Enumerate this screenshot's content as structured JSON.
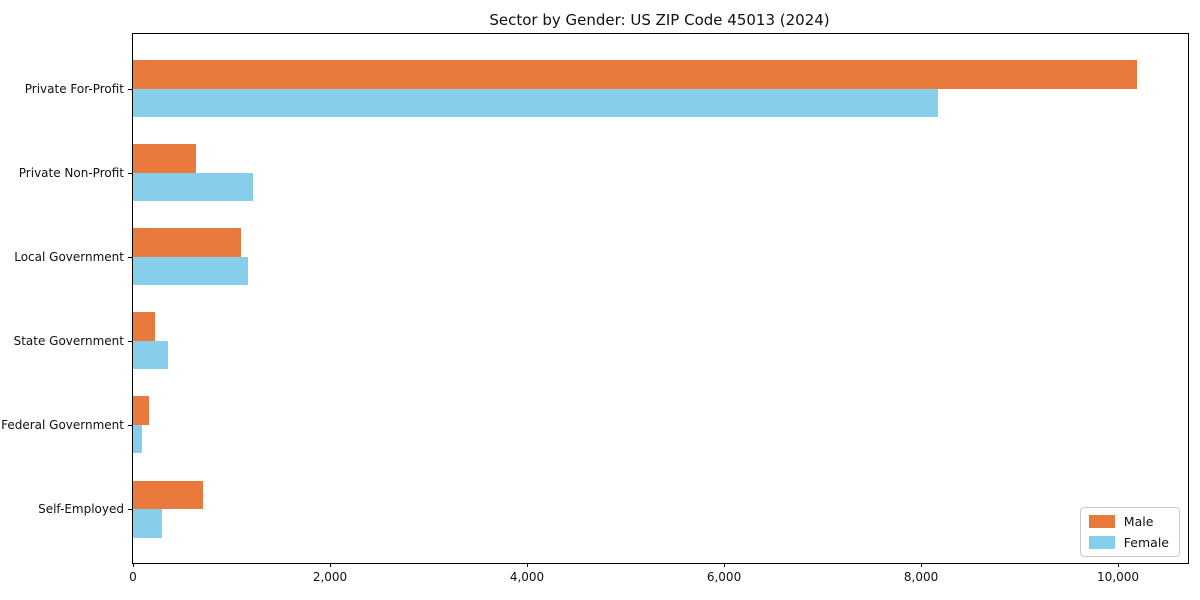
{
  "page": {
    "background_color": "#ffffff",
    "text_color": "#111111",
    "axis_color": "#000000"
  },
  "chart_data": {
    "type": "bar",
    "orientation": "horizontal",
    "title": "Sector by Gender: US ZIP Code 45013 (2024)",
    "xlabel": "",
    "ylabel": "",
    "categories": [
      "Private For-Profit",
      "Private Non-Profit",
      "Local Government",
      "State Government",
      "Federal Government",
      "Self-Employed"
    ],
    "series": [
      {
        "name": "Male",
        "color": "#E87A3D",
        "values": [
          10190,
          640,
          1100,
          225,
          165,
          710
        ]
      },
      {
        "name": "Female",
        "color": "#87CEEB",
        "values": [
          8170,
          1220,
          1170,
          355,
          90,
          295
        ]
      }
    ],
    "xlim": [
      0,
      10710
    ],
    "xticks": {
      "values": [
        0,
        2000,
        4000,
        6000,
        8000,
        10000
      ],
      "labels": [
        "0",
        "2,000",
        "4,000",
        "6,000",
        "8,000",
        "10,000"
      ]
    },
    "grid": false,
    "legend": {
      "position": "lower right",
      "entries": [
        "Male",
        "Female"
      ]
    }
  }
}
